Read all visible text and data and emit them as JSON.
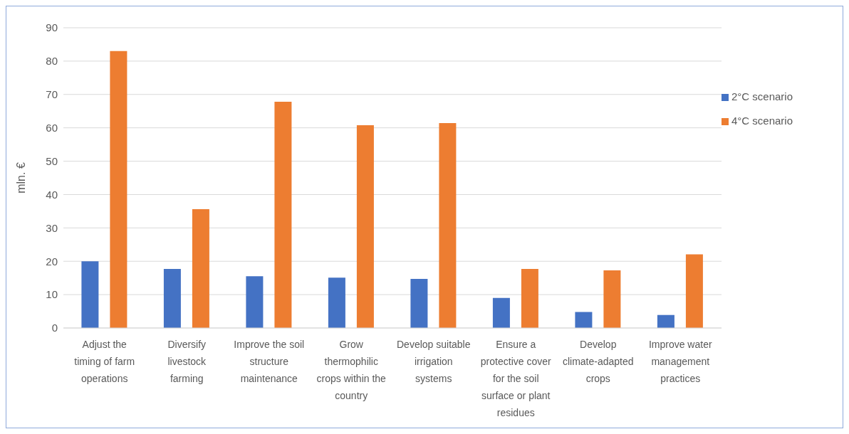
{
  "chart_data": {
    "type": "bar",
    "ylabel": "mln. €",
    "categories": [
      "Adjust the timing of farm operations",
      "Diversify livestock farming",
      "Improve the soil structure maintenance",
      "Grow thermophilic crops within the country",
      "Develop suitable irrigation systems",
      "Ensure a protective cover for the soil surface or plant residues",
      "Develop climate-adapted crops",
      "Improve water management practices"
    ],
    "series": [
      {
        "name": "2°C scenario",
        "color": "#4472c4",
        "values": [
          20,
          17.7,
          15.5,
          15.1,
          14.7,
          9,
          4.8,
          3.9
        ]
      },
      {
        "name": "4°C scenario",
        "color": "#ed7d31",
        "values": [
          83,
          35.6,
          67.8,
          60.8,
          61.4,
          17.7,
          17.3,
          22.1
        ]
      }
    ],
    "ylim": [
      0,
      90
    ],
    "yticks": [
      0,
      10,
      20,
      30,
      40,
      50,
      60,
      70,
      80,
      90
    ],
    "grid": "y",
    "legend": "right"
  }
}
